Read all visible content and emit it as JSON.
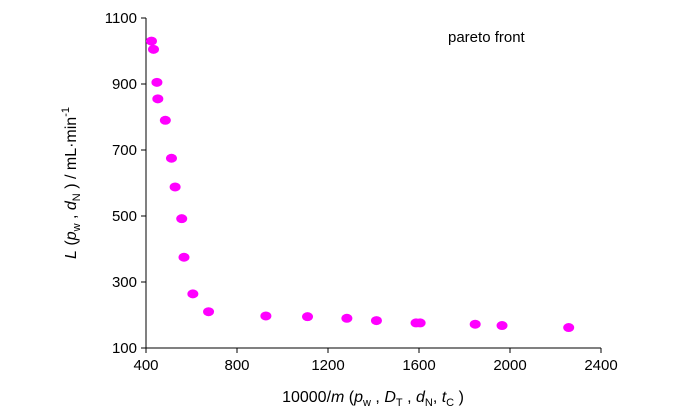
{
  "chart_data": {
    "type": "scatter",
    "legend_text": "pareto front",
    "legend_position": "top-right",
    "marker_color": "#ff00ff",
    "grid": false,
    "xlabel": {
      "prefix": "10000/",
      "var": "m",
      "open": " (",
      "p": "p",
      "p_sub": "w",
      "sep1": " , ",
      "D": "D",
      "D_sub": "T",
      "sep2": " , ",
      "d": "d",
      "d_sub": "N",
      "sep3": ", ",
      "t": "t",
      "t_sub": "C",
      "close": " )"
    },
    "ylabel": {
      "var": "L",
      "open": " (",
      "p": "p",
      "p_sub": "w",
      "sep1": " , ",
      "d": "d",
      "d_sub": "N",
      "close": " ) / mL·min",
      "sup": "-1"
    },
    "xlim": [
      400,
      2400
    ],
    "ylim": [
      100,
      1100
    ],
    "xticks": [
      "400",
      "800",
      "1200",
      "1600",
      "2000",
      "2400"
    ],
    "yticks": [
      "100",
      "300",
      "500",
      "700",
      "900",
      "1100"
    ],
    "points": [
      {
        "x": 424,
        "y": 1030
      },
      {
        "x": 433,
        "y": 1005
      },
      {
        "x": 448,
        "y": 905
      },
      {
        "x": 452,
        "y": 855
      },
      {
        "x": 485,
        "y": 790
      },
      {
        "x": 512,
        "y": 675
      },
      {
        "x": 528,
        "y": 588
      },
      {
        "x": 557,
        "y": 492
      },
      {
        "x": 567,
        "y": 375
      },
      {
        "x": 606,
        "y": 264
      },
      {
        "x": 675,
        "y": 210
      },
      {
        "x": 927,
        "y": 197
      },
      {
        "x": 1110,
        "y": 195
      },
      {
        "x": 1283,
        "y": 190
      },
      {
        "x": 1413,
        "y": 183
      },
      {
        "x": 1587,
        "y": 176
      },
      {
        "x": 1605,
        "y": 176
      },
      {
        "x": 1847,
        "y": 172
      },
      {
        "x": 1965,
        "y": 168
      },
      {
        "x": 2258,
        "y": 162
      }
    ]
  }
}
